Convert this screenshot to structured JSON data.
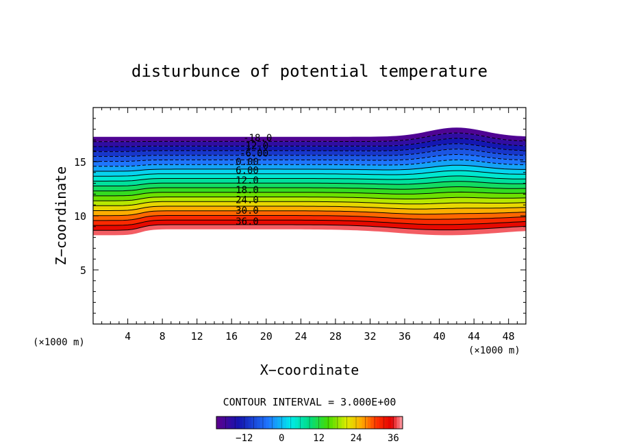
{
  "chart_data": {
    "type": "contour",
    "title": "disturbunce of potential temperature",
    "xlabel": "X−coordinate",
    "ylabel": "Z−coordinate",
    "x_unit": "(×1000 m)",
    "x_unit_left": "(×1000 m)",
    "xlim": [
      0,
      50
    ],
    "ylim": [
      0,
      20
    ],
    "xticks": [
      4,
      8,
      12,
      16,
      20,
      24,
      28,
      32,
      36,
      40,
      44,
      48
    ],
    "xtick_labels": [
      "4",
      "8",
      "12",
      "16",
      "20",
      "24",
      "28",
      "32",
      "36",
      "40",
      "44",
      "48"
    ],
    "yticks": [
      5,
      10,
      15
    ],
    "ytick_labels": [
      "5",
      "10",
      "15"
    ],
    "contour_interval_text": "CONTOUR INTERVAL = 3.000E+00",
    "contour_interval": 3.0,
    "value_range": [
      -21,
      39
    ],
    "contour_labels": [
      {
        "text": "-18.0",
        "value": -18.0,
        "x": 19.0,
        "z": 17.2
      },
      {
        "text": "-12.0",
        "value": -12.0,
        "x": 18.6,
        "z": 16.5
      },
      {
        "text": "-6.00",
        "value": -6.0,
        "x": 18.6,
        "z": 15.8
      },
      {
        "text": "0.00",
        "value": 0.0,
        "x": 17.8,
        "z": 15.0
      },
      {
        "text": "6.00",
        "value": 6.0,
        "x": 17.8,
        "z": 14.2
      },
      {
        "text": "12.0",
        "value": 12.0,
        "x": 17.8,
        "z": 13.3
      },
      {
        "text": "18.0",
        "value": 18.0,
        "x": 17.8,
        "z": 12.4
      },
      {
        "text": "24.0",
        "value": 24.0,
        "x": 17.8,
        "z": 11.5
      },
      {
        "text": "30.0",
        "value": 30.0,
        "x": 17.8,
        "z": 10.5
      },
      {
        "text": "36.0",
        "value": 36.0,
        "x": 17.8,
        "z": 9.5
      }
    ],
    "colorbar": {
      "ticks": [
        -12,
        0,
        12,
        24,
        36
      ],
      "tick_labels": [
        "−12",
        "0",
        "12",
        "24",
        "36"
      ],
      "min": -21,
      "max": 39,
      "interval": 3
    }
  }
}
